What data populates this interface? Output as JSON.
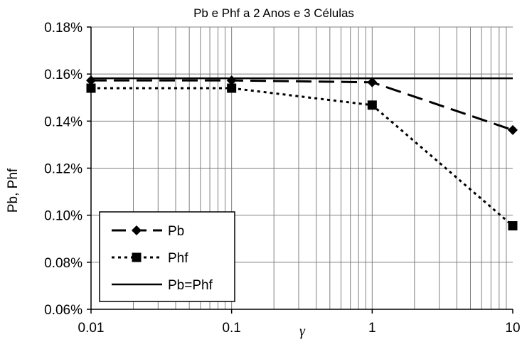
{
  "chart_data": {
    "type": "line",
    "title": "Pb e Phf a 2 Anos e 3 Células",
    "xlabel": "γ",
    "ylabel": "Pb, Phf",
    "x_scale": "log",
    "xlim": [
      0.01,
      10
    ],
    "ylim": [
      0.06,
      0.18
    ],
    "x_ticks": [
      0.01,
      0.1,
      1,
      10
    ],
    "x_tick_labels": [
      "0.01",
      "0.1",
      "1",
      "10"
    ],
    "y_ticks": [
      0.06,
      0.08,
      0.1,
      0.12,
      0.14,
      0.16,
      0.18
    ],
    "y_tick_labels": [
      "0.06%",
      "0.08%",
      "0.10%",
      "0.12%",
      "0.14%",
      "0.16%",
      "0.18%"
    ],
    "grid": true,
    "legend_position": "bottom-left",
    "x": [
      0.01,
      0.1,
      1,
      10
    ],
    "series": [
      {
        "name": "Pb",
        "values": [
          0.1573,
          0.1573,
          0.1565,
          0.1362
        ],
        "marker": "diamond",
        "line": "long-dash",
        "color": "#000000"
      },
      {
        "name": "Phf",
        "values": [
          0.154,
          0.154,
          0.1468,
          0.0955
        ],
        "marker": "square",
        "line": "dotted",
        "color": "#000000"
      },
      {
        "name": "Pb=Phf",
        "values": [
          0.1582,
          0.1582,
          0.1582,
          0.1582
        ],
        "marker": "none",
        "line": "solid",
        "color": "#000000"
      }
    ]
  }
}
